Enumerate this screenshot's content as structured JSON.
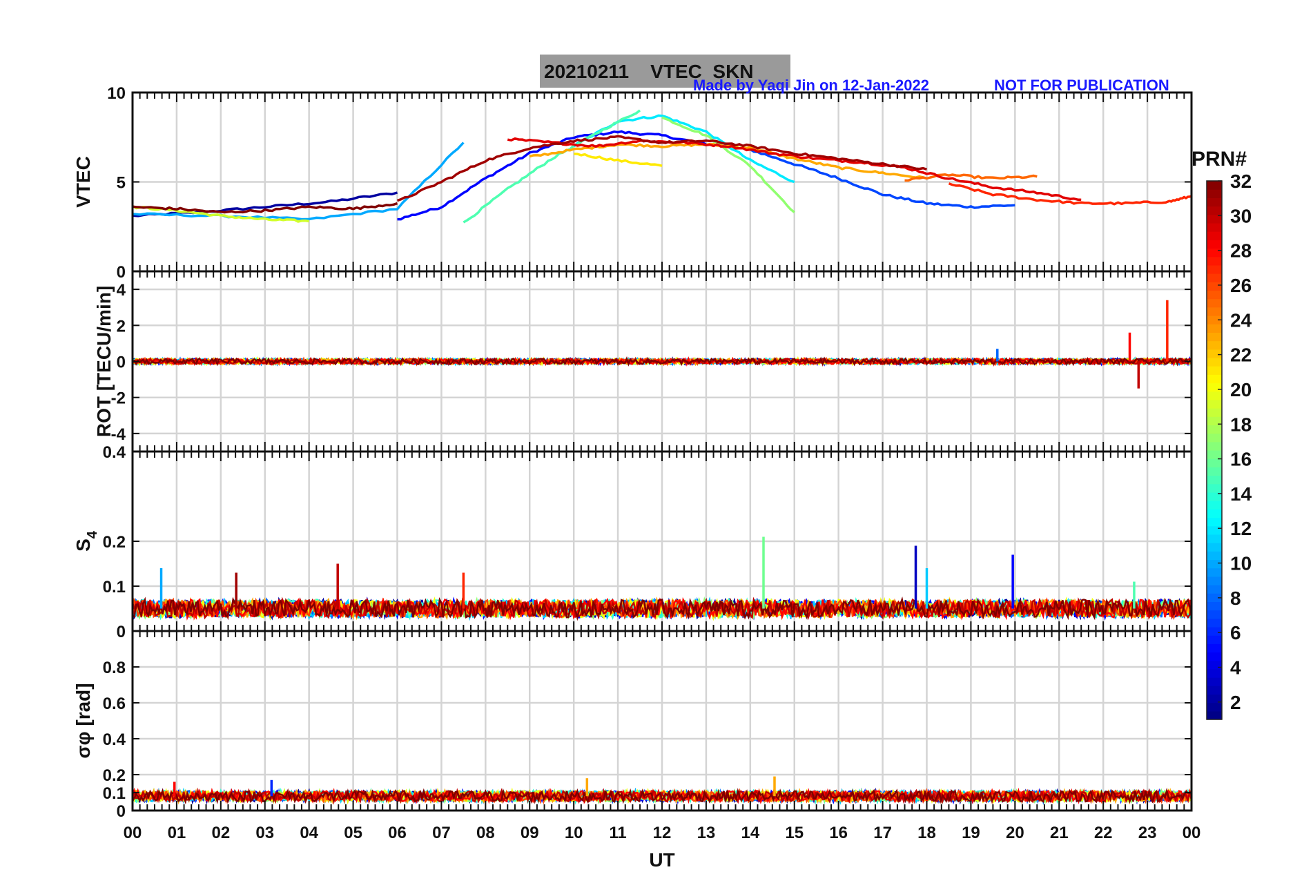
{
  "header": {
    "date": "20210211",
    "title": "VTEC  SKN",
    "credit": "Made by Yaqi Jin on 12-Jan-2022",
    "notice": "NOT FOR PUBLICATION"
  },
  "colorbar": {
    "label": "PRN#",
    "min": 1,
    "max": 32,
    "ticks": [
      "2",
      "4",
      "6",
      "8",
      "10",
      "12",
      "14",
      "16",
      "18",
      "20",
      "22",
      "24",
      "26",
      "28",
      "30",
      "32"
    ]
  },
  "xaxis": {
    "label": "UT",
    "ticks": [
      "00",
      "01",
      "02",
      "03",
      "04",
      "05",
      "06",
      "07",
      "08",
      "09",
      "10",
      "11",
      "12",
      "13",
      "14",
      "15",
      "16",
      "17",
      "18",
      "19",
      "20",
      "21",
      "22",
      "23",
      "00"
    ]
  },
  "chart_data": [
    {
      "type": "line",
      "panel": "vtec",
      "ylabel": "VTEC",
      "ylim": [
        0,
        10
      ],
      "yticks": [
        "0",
        "5",
        "10"
      ],
      "x_unit": "UT hours",
      "grid": true,
      "series": [
        {
          "prn": 2,
          "x": [
            0.0,
            1.5,
            3.0,
            4.5,
            6.0
          ],
          "y": [
            3.1,
            3.3,
            3.6,
            3.9,
            4.4
          ]
        },
        {
          "prn": 5,
          "x": [
            6.0,
            7.0,
            8.0,
            9.0,
            10.0,
            11.0,
            12.0,
            13.0
          ],
          "y": [
            2.9,
            3.6,
            5.2,
            6.6,
            7.5,
            7.8,
            7.6,
            7.1
          ]
        },
        {
          "prn": 7,
          "x": [
            14.0,
            15.0,
            16.0,
            17.0,
            18.0,
            19.0,
            20.0
          ],
          "y": [
            6.8,
            6.0,
            5.2,
            4.3,
            3.8,
            3.6,
            3.7
          ]
        },
        {
          "prn": 10,
          "x": [
            0.0,
            2.0,
            4.0,
            6.0,
            7.5
          ],
          "y": [
            3.2,
            3.1,
            2.9,
            3.5,
            7.2
          ]
        },
        {
          "prn": 12,
          "x": [
            10.0,
            11.0,
            12.0,
            13.0,
            14.0,
            15.0
          ],
          "y": [
            7.0,
            8.4,
            8.7,
            7.8,
            6.2,
            5.0
          ]
        },
        {
          "prn": 15,
          "x": [
            7.5,
            8.5,
            9.5,
            10.5,
            11.5
          ],
          "y": [
            2.7,
            4.6,
            6.3,
            7.7,
            9.0
          ]
        },
        {
          "prn": 17,
          "x": [
            12.0,
            13.0,
            14.0,
            15.0
          ],
          "y": [
            8.6,
            7.6,
            5.9,
            3.3
          ]
        },
        {
          "prn": 19,
          "x": [
            0.0,
            1.0,
            2.0,
            3.0,
            4.0
          ],
          "y": [
            3.6,
            3.4,
            3.1,
            2.9,
            2.8
          ]
        },
        {
          "prn": 21,
          "x": [
            10.0,
            11.0,
            12.0
          ],
          "y": [
            6.6,
            6.2,
            5.9
          ]
        },
        {
          "prn": 23,
          "x": [
            9.0,
            10.0,
            11.0,
            12.0,
            13.0,
            14.0,
            15.0,
            16.0,
            17.0,
            18.0
          ],
          "y": [
            6.4,
            6.8,
            7.1,
            7.0,
            7.1,
            6.9,
            6.3,
            5.8,
            5.5,
            5.2
          ]
        },
        {
          "prn": 25,
          "x": [
            17.5,
            18.5,
            19.5,
            20.5
          ],
          "y": [
            5.1,
            5.4,
            5.2,
            5.3
          ]
        },
        {
          "prn": 27,
          "x": [
            18.5,
            19.5,
            20.5,
            21.5,
            22.5,
            23.5,
            24.0
          ],
          "y": [
            4.9,
            4.3,
            4.0,
            3.8,
            3.8,
            3.9,
            4.2
          ]
        },
        {
          "prn": 29,
          "x": [
            8.5,
            9.5,
            10.5,
            11.5,
            12.5,
            13.5,
            14.5,
            15.5,
            16.5,
            17.5,
            18.5,
            19.5,
            20.5,
            21.5
          ],
          "y": [
            7.4,
            7.2,
            7.0,
            7.3,
            7.2,
            7.0,
            6.6,
            6.3,
            6.1,
            5.8,
            5.2,
            4.7,
            4.4,
            4.0
          ]
        },
        {
          "prn": 31,
          "x": [
            6.0,
            7.0,
            8.0,
            9.0,
            10.0,
            11.0,
            12.0,
            13.0,
            14.0,
            15.0,
            16.0,
            17.0,
            18.0
          ],
          "y": [
            3.9,
            5.0,
            6.2,
            6.9,
            7.3,
            7.5,
            7.2,
            7.3,
            7.0,
            6.6,
            6.3,
            6.0,
            5.7
          ]
        },
        {
          "prn": 32,
          "x": [
            0.0,
            1.0,
            2.0,
            3.0,
            4.0,
            5.0,
            6.0
          ],
          "y": [
            3.6,
            3.5,
            3.3,
            3.4,
            3.6,
            3.5,
            3.8
          ]
        }
      ]
    },
    {
      "type": "line",
      "panel": "rot",
      "ylabel": "ROT [TECU/min]",
      "ylim": [
        -5,
        5
      ],
      "yticks": [
        "-4",
        "-2",
        "0",
        "2",
        "4"
      ],
      "x_unit": "UT hours",
      "grid": true,
      "baseline": 0,
      "noise_amplitude": 0.15,
      "spikes": [
        {
          "x": 19.6,
          "y": 0.7,
          "prn": 8
        },
        {
          "x": 22.6,
          "y": 1.6,
          "prn": 28
        },
        {
          "x": 22.8,
          "y": -1.5,
          "prn": 30
        },
        {
          "x": 23.45,
          "y": 3.4,
          "prn": 27
        }
      ]
    },
    {
      "type": "line",
      "panel": "s4",
      "ylabel": "S4",
      "ylim": [
        0,
        0.4
      ],
      "yticks": [
        "0",
        "0.1",
        "0.2",
        "0.4"
      ],
      "x_unit": "UT hours",
      "grid": true,
      "baseline": 0.05,
      "noise_amplitude": 0.02,
      "spikes": [
        {
          "x": 0.65,
          "y": 0.14,
          "prn": 10
        },
        {
          "x": 2.35,
          "y": 0.13,
          "prn": 31
        },
        {
          "x": 4.65,
          "y": 0.15,
          "prn": 30
        },
        {
          "x": 7.5,
          "y": 0.13,
          "prn": 27
        },
        {
          "x": 14.3,
          "y": 0.21,
          "prn": 16
        },
        {
          "x": 17.75,
          "y": 0.19,
          "prn": 3
        },
        {
          "x": 18.0,
          "y": 0.14,
          "prn": 11
        },
        {
          "x": 19.95,
          "y": 0.17,
          "prn": 5
        },
        {
          "x": 22.7,
          "y": 0.11,
          "prn": 15
        }
      ]
    },
    {
      "type": "line",
      "panel": "sigma_phi",
      "ylabel": "σφ [rad]",
      "ylim": [
        0,
        1
      ],
      "yticks": [
        "0",
        "0.1",
        "0.2",
        "0.4",
        "0.6",
        "0.8"
      ],
      "x_unit": "UT hours",
      "grid": true,
      "baseline": 0.08,
      "noise_amplitude": 0.03,
      "spikes": [
        {
          "x": 0.95,
          "y": 0.16,
          "prn": 28
        },
        {
          "x": 3.15,
          "y": 0.17,
          "prn": 6
        },
        {
          "x": 10.3,
          "y": 0.18,
          "prn": 23
        },
        {
          "x": 14.55,
          "y": 0.19,
          "prn": 23
        }
      ]
    }
  ]
}
